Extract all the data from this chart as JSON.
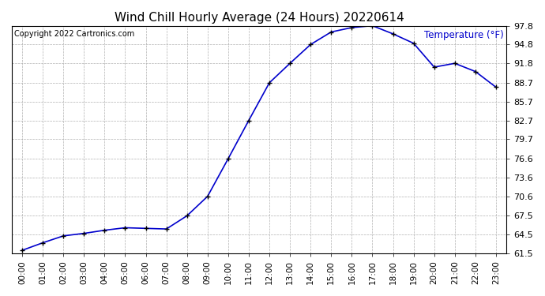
{
  "title": "Wind Chill Hourly Average (24 Hours) 20220614",
  "copyright": "Copyright 2022 Cartronics.com",
  "legend_label": "Temperature (°F)",
  "x_labels": [
    "00:00",
    "01:00",
    "02:00",
    "03:00",
    "04:00",
    "05:00",
    "06:00",
    "07:00",
    "08:00",
    "09:00",
    "10:00",
    "11:00",
    "12:00",
    "13:00",
    "14:00",
    "15:00",
    "16:00",
    "17:00",
    "18:00",
    "19:00",
    "20:00",
    "21:00",
    "22:00",
    "23:00"
  ],
  "y_values": [
    62.0,
    63.2,
    64.3,
    64.7,
    65.2,
    65.6,
    65.5,
    65.4,
    67.5,
    70.6,
    76.6,
    82.7,
    88.7,
    91.8,
    94.8,
    96.8,
    97.5,
    97.8,
    96.5,
    95.0,
    91.2,
    91.8,
    90.5,
    88.0
  ],
  "y_ticks": [
    61.5,
    64.5,
    67.5,
    70.6,
    73.6,
    76.6,
    79.7,
    82.7,
    85.7,
    88.7,
    91.8,
    94.8,
    97.8
  ],
  "y_tick_labels": [
    "61.5",
    "64.5",
    "67.5",
    "70.6",
    "73.6",
    "76.6",
    "79.7",
    "82.7",
    "85.7",
    "88.7",
    "91.8",
    "94.8",
    "97.8"
  ],
  "ylim": [
    61.5,
    97.8
  ],
  "line_color": "#0000cc",
  "marker": "+",
  "marker_color": "#000000",
  "bg_color": "#ffffff",
  "grid_color": "#b0b0b0",
  "title_fontsize": 11,
  "legend_color": "#0000cc",
  "copyright_color": "#000000",
  "tick_fontsize": 7.5,
  "ytick_fontsize": 8
}
